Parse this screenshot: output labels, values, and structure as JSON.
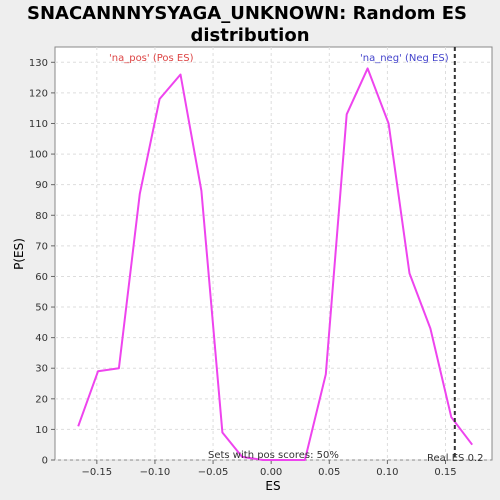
{
  "chart_data": {
    "type": "line",
    "title_lines": [
      "SNACANNNYSYAGA_UNKNOWN: Random ES",
      "distribution"
    ],
    "xlabel": "ES",
    "ylabel": "P(ES)",
    "xlim": [
      -0.186,
      0.19
    ],
    "ylim": [
      0,
      135
    ],
    "x_ticks": [
      -0.15,
      -0.1,
      -0.05,
      0.0,
      0.05,
      0.1,
      0.15
    ],
    "x_tick_labels": [
      "−0.15",
      "−0.10",
      "−0.05",
      "0.00",
      "0.05",
      "0.10",
      "0.15"
    ],
    "y_ticks": [
      0,
      10,
      20,
      30,
      40,
      50,
      60,
      70,
      80,
      90,
      100,
      110,
      120,
      130
    ],
    "y_tick_labels": [
      "0",
      "10",
      "20",
      "30",
      "40",
      "50",
      "60",
      "70",
      "80",
      "90",
      "100",
      "110",
      "120",
      "130"
    ],
    "grid": true,
    "series": [
      {
        "color": "#ee44ee",
        "points": [
          [
            -0.166,
            11
          ],
          [
            -0.149,
            29
          ],
          [
            -0.131,
            30
          ],
          [
            -0.113,
            87
          ],
          [
            -0.096,
            118
          ],
          [
            -0.078,
            126
          ],
          [
            -0.06,
            88
          ],
          [
            -0.042,
            9
          ],
          [
            -0.025,
            1
          ],
          [
            -0.007,
            0
          ],
          [
            0.011,
            0
          ],
          [
            0.029,
            0
          ],
          [
            0.047,
            28
          ],
          [
            0.065,
            113
          ],
          [
            0.083,
            128
          ],
          [
            0.101,
            110
          ],
          [
            0.119,
            61
          ],
          [
            0.137,
            43
          ],
          [
            0.155,
            14
          ],
          [
            0.173,
            5
          ]
        ]
      }
    ],
    "real_es": 0.158,
    "annotations": {
      "pos_label": "'na_pos' (Pos ES)",
      "pos_color": "#dd4444",
      "neg_label": "'na_neg' (Neg ES)",
      "neg_color": "#4444cc",
      "sets_label": "Sets with pos scores: 50%",
      "real_label": "Real ES 0.2"
    }
  }
}
